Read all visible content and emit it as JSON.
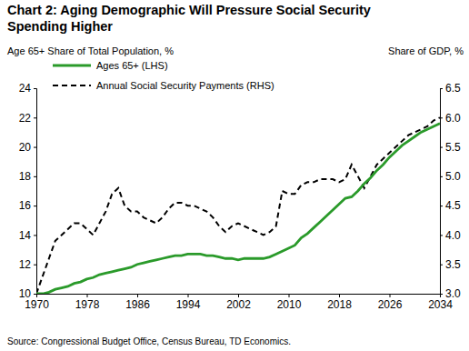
{
  "chart_data": {
    "type": "line",
    "title": "Chart 2: Aging Demographic Will Pressure Social Security Spending Higher",
    "y_label": "Age 65+ Share of Total Population, %",
    "y2_label": "Share of GDP, %",
    "source": "Source: Congressional Budget Office, Census Bureau, TD Economics.",
    "x": [
      1970,
      1971,
      1972,
      1973,
      1974,
      1975,
      1976,
      1977,
      1978,
      1979,
      1980,
      1981,
      1982,
      1983,
      1984,
      1985,
      1986,
      1987,
      1988,
      1989,
      1990,
      1991,
      1992,
      1993,
      1994,
      1995,
      1996,
      1997,
      1998,
      1999,
      2000,
      2001,
      2002,
      2003,
      2004,
      2005,
      2006,
      2007,
      2008,
      2009,
      2010,
      2011,
      2012,
      2013,
      2014,
      2015,
      2016,
      2017,
      2018,
      2019,
      2020,
      2021,
      2022,
      2023,
      2024,
      2025,
      2026,
      2027,
      2028,
      2029,
      2030,
      2031,
      2032,
      2033,
      2034
    ],
    "series": [
      {
        "name": "Ages 65+ (LHS)",
        "color": "#2a9a2a",
        "line_style": "solid",
        "values": [
          10.0,
          10.0,
          10.1,
          10.3,
          10.4,
          10.5,
          10.7,
          10.8,
          11.0,
          11.1,
          11.3,
          11.4,
          11.5,
          11.6,
          11.7,
          11.8,
          12.0,
          12.1,
          12.2,
          12.3,
          12.4,
          12.5,
          12.6,
          12.6,
          12.7,
          12.7,
          12.7,
          12.6,
          12.6,
          12.5,
          12.4,
          12.4,
          12.3,
          12.4,
          12.4,
          12.4,
          12.4,
          12.5,
          12.7,
          12.9,
          13.1,
          13.3,
          13.8,
          14.1,
          14.5,
          14.9,
          15.3,
          15.7,
          16.1,
          16.5,
          16.6,
          17.0,
          17.5,
          17.9,
          18.4,
          18.8,
          19.3,
          19.7,
          20.1,
          20.4,
          20.7,
          21.0,
          21.2,
          21.4,
          21.6
        ]
      },
      {
        "name": "Annual Social Security Payments (RHS)",
        "color": "#000000",
        "line_style": "dashed",
        "axis": "y2",
        "values": [
          3.0,
          3.3,
          3.6,
          3.9,
          4.0,
          4.1,
          4.2,
          4.2,
          4.1,
          4.0,
          4.2,
          4.4,
          4.7,
          4.8,
          4.5,
          4.4,
          4.4,
          4.3,
          4.25,
          4.2,
          4.3,
          4.45,
          4.55,
          4.55,
          4.5,
          4.5,
          4.45,
          4.4,
          4.3,
          4.15,
          4.05,
          4.15,
          4.2,
          4.15,
          4.1,
          4.05,
          4.0,
          4.05,
          4.15,
          4.75,
          4.7,
          4.7,
          4.85,
          4.9,
          4.9,
          4.95,
          4.95,
          4.95,
          4.9,
          4.95,
          5.2,
          5.0,
          4.8,
          5.0,
          5.2,
          5.3,
          5.4,
          5.5,
          5.6,
          5.7,
          5.75,
          5.8,
          5.85,
          5.95,
          6.0
        ]
      }
    ],
    "xlim": [
      1970,
      2034
    ],
    "xticks": [
      1970,
      1978,
      1986,
      1994,
      2002,
      2010,
      2018,
      2026,
      2034
    ],
    "ylim": [
      10,
      24
    ],
    "yticks": [
      10,
      12,
      14,
      16,
      18,
      20,
      22,
      24
    ],
    "y2lim": [
      3,
      6.5
    ],
    "y2ticks": [
      {
        "value": 3,
        "label": "3.0"
      },
      3.5,
      {
        "value": 4,
        "label": "4.0"
      },
      4.5,
      {
        "value": 5,
        "label": "5.0"
      },
      5.5,
      {
        "value": 6,
        "label": "6.0"
      },
      6.5
    ],
    "grid": false,
    "legend": "upper left"
  }
}
